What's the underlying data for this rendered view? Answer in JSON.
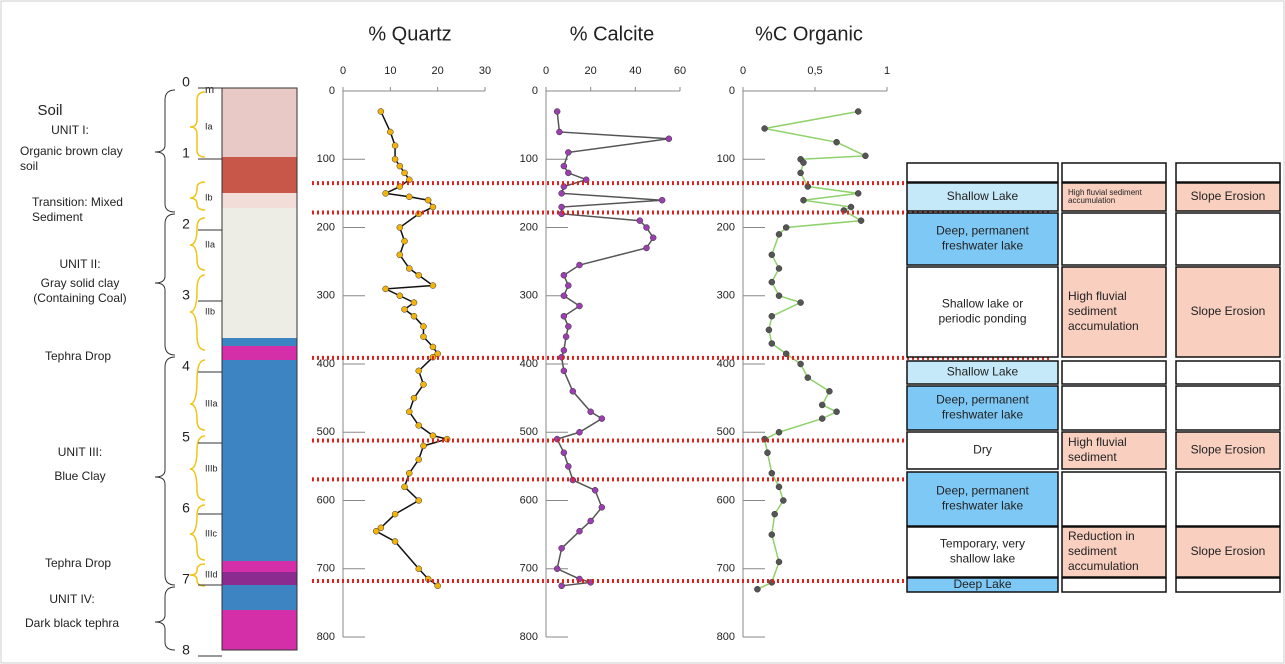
{
  "chart_data": [
    {
      "type": "line",
      "title": "% Quartz",
      "xlim": [
        0,
        30
      ],
      "xticks": [
        0,
        10,
        20,
        30
      ],
      "ylim": [
        0,
        800
      ],
      "yticks": [
        0,
        100,
        200,
        300,
        400,
        500,
        600,
        700,
        800
      ],
      "y_inverted": true,
      "line_color": "#111111",
      "marker_color": "#f2b30c",
      "y": [
        30,
        60,
        80,
        100,
        110,
        120,
        130,
        140,
        150,
        155,
        160,
        170,
        180,
        200,
        220,
        240,
        260,
        270,
        285,
        290,
        300,
        310,
        320,
        330,
        345,
        360,
        375,
        385,
        390,
        410,
        430,
        450,
        470,
        490,
        505,
        510,
        520,
        540,
        560,
        580,
        600,
        620,
        640,
        645,
        660,
        700,
        715,
        725
      ],
      "values": [
        8,
        10,
        11,
        11,
        12,
        13,
        14,
        12,
        9,
        14,
        18,
        19,
        16,
        12,
        13,
        12,
        14,
        16,
        19,
        9,
        12,
        15,
        13,
        15,
        17,
        17,
        19,
        20,
        19,
        16,
        17,
        15,
        14,
        16,
        19,
        22,
        17,
        16,
        14,
        13,
        16,
        11,
        8,
        7,
        11,
        16,
        18,
        20
      ]
    },
    {
      "type": "line",
      "title": "% Calcite",
      "xlim": [
        0,
        60
      ],
      "xticks": [
        0,
        20,
        40,
        60
      ],
      "ylim": [
        0,
        800
      ],
      "yticks": [
        0,
        100,
        200,
        300,
        400,
        500,
        600,
        700,
        800
      ],
      "y_inverted": true,
      "line_color": "#555555",
      "marker_color": "#9b3fb0",
      "y": [
        30,
        60,
        70,
        90,
        110,
        120,
        130,
        140,
        150,
        160,
        170,
        180,
        190,
        200,
        215,
        230,
        255,
        270,
        285,
        300,
        315,
        330,
        345,
        360,
        380,
        390,
        410,
        440,
        470,
        480,
        500,
        510,
        530,
        550,
        570,
        585,
        610,
        630,
        645,
        670,
        700,
        715,
        720,
        725
      ],
      "values": [
        5,
        6,
        55,
        10,
        8,
        10,
        18,
        8,
        7,
        52,
        7,
        7,
        42,
        45,
        48,
        45,
        15,
        8,
        10,
        8,
        15,
        8,
        10,
        9,
        8,
        7,
        8,
        12,
        20,
        25,
        15,
        5,
        8,
        10,
        12,
        22,
        25,
        20,
        15,
        7,
        5,
        15,
        20,
        7
      ]
    },
    {
      "type": "line",
      "title": "%C Organic",
      "xlim": [
        0,
        1
      ],
      "xticks": [
        0,
        {
          "value": 0.5,
          "label": "0,5"
        },
        1
      ],
      "ylim": [
        0,
        800
      ],
      "yticks": [
        0,
        100,
        200,
        300,
        400,
        500,
        600,
        700,
        800
      ],
      "y_inverted": true,
      "line_color": "#8fd16a",
      "marker_color": "#555555",
      "y": [
        30,
        55,
        75,
        95,
        100,
        105,
        120,
        140,
        150,
        160,
        170,
        175,
        190,
        200,
        210,
        240,
        260,
        280,
        300,
        310,
        330,
        350,
        370,
        385,
        400,
        420,
        440,
        460,
        470,
        480,
        500,
        510,
        530,
        560,
        580,
        600,
        620,
        650,
        690,
        720,
        730
      ],
      "values": [
        0.8,
        0.15,
        0.65,
        0.85,
        0.4,
        0.42,
        0.4,
        0.45,
        0.8,
        0.42,
        0.75,
        0.7,
        0.82,
        0.3,
        0.25,
        0.2,
        0.25,
        0.2,
        0.25,
        0.4,
        0.2,
        0.18,
        0.2,
        0.3,
        0.4,
        0.45,
        0.6,
        0.55,
        0.65,
        0.55,
        0.25,
        0.15,
        0.17,
        0.2,
        0.25,
        0.28,
        0.22,
        0.2,
        0.25,
        0.2,
        0.1
      ]
    }
  ],
  "boundaries": [
    135,
    178,
    391,
    512,
    569,
    718
  ],
  "boundary_color": "#e0201b",
  "column": {
    "unit_label": "m",
    "depth_ticks": [
      0,
      1,
      2,
      3,
      4,
      5,
      6,
      7,
      8
    ],
    "sub_units": [
      "Ia",
      "Ib",
      "IIa",
      "IIb",
      "IIIa",
      "IIIb",
      "IIIc",
      "IIId"
    ],
    "units": [
      [
        "Soil"
      ],
      [
        "UNIT I:"
      ],
      [
        "Organic brown clay",
        "soil"
      ],
      [
        "Transition: Mixed",
        "Sediment"
      ],
      [
        "UNIT II:"
      ],
      [
        "Gray solid clay",
        "(Containing Coal)"
      ],
      [
        "Tephra Drop"
      ],
      [
        "UNIT III:"
      ],
      [
        "Blue Clay"
      ],
      [
        "Tephra Drop"
      ],
      [
        "UNIT IV:"
      ],
      [
        "Dark black tephra"
      ]
    ]
  },
  "table": {
    "process_color": "#f9cfc0",
    "fill": [
      "#ffffff",
      "#c5e9f8",
      "#7ec8f5",
      "#ffffff",
      "#c5e9f8",
      "#7ec8f5",
      "#ffffff",
      "#7ec8f5",
      "#ffffff",
      "#7ec8f5"
    ],
    "rows": [
      [
        null,
        null,
        null
      ],
      [
        [
          "Shallow Lake"
        ],
        [
          "High fluvial sediment",
          "accumulation"
        ],
        [
          "Slope Erosion"
        ]
      ],
      [
        [
          "Deep, permanent",
          "freshwater lake"
        ],
        null,
        null
      ],
      [
        [
          "Shallow lake or",
          "periodic ponding"
        ],
        [
          "High fluvial",
          "sediment",
          "accumulation"
        ],
        [
          "Slope Erosion"
        ]
      ],
      [
        [
          "Shallow Lake"
        ],
        null,
        null
      ],
      [
        [
          "Deep, permanent",
          "freshwater lake"
        ],
        null,
        null
      ],
      [
        [
          "Dry"
        ],
        [
          "High fluvial",
          "sediment"
        ],
        [
          "Slope Erosion"
        ]
      ],
      [
        [
          "Deep, permanent",
          "freshwater lake"
        ],
        null,
        null
      ],
      [
        [
          "Temporary, very",
          "shallow lake"
        ],
        [
          "Reduction in",
          "sediment",
          "accumulation"
        ],
        [
          "Slope Erosion"
        ]
      ],
      [
        [
          "Deep Lake"
        ],
        null,
        null
      ]
    ]
  }
}
